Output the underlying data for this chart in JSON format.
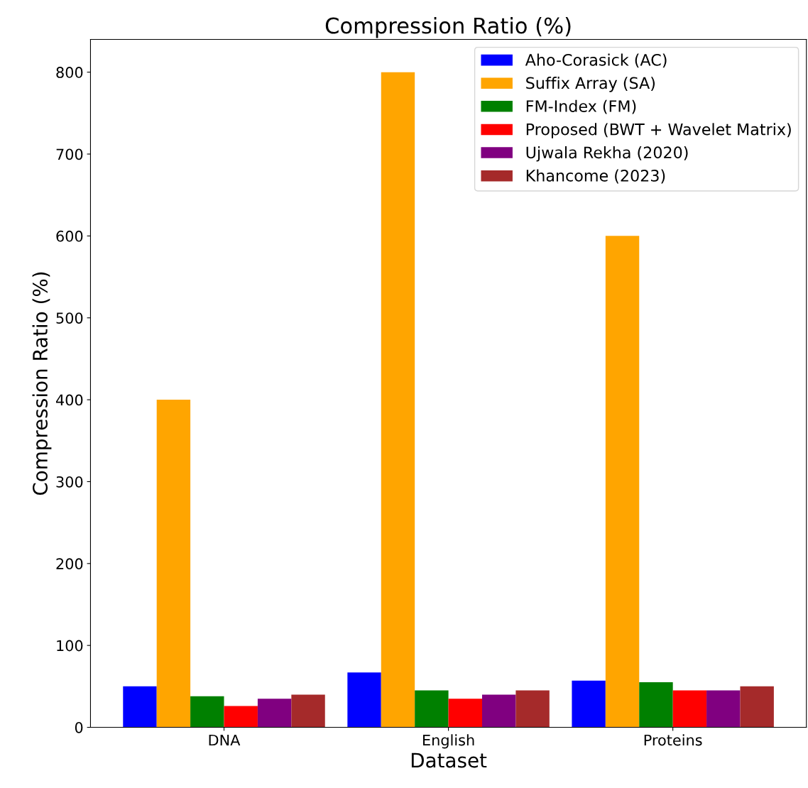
{
  "chart_data": {
    "type": "bar",
    "title": "Compression Ratio (%)",
    "xlabel": "Dataset",
    "ylabel": "Compression Ratio (%)",
    "categories": [
      "DNA",
      "English",
      "Proteins"
    ],
    "series": [
      {
        "name": "Aho-Corasick (AC)",
        "color": "#0000ff",
        "values": [
          50,
          67,
          57
        ]
      },
      {
        "name": "Suffix Array (SA)",
        "color": "#ffa500",
        "values": [
          400,
          800,
          600
        ]
      },
      {
        "name": "FM-Index (FM)",
        "color": "#008000",
        "values": [
          38,
          45,
          55
        ]
      },
      {
        "name": "Proposed (BWT + Wavelet Matrix)",
        "color": "#ff0000",
        "values": [
          26,
          35,
          45
        ]
      },
      {
        "name": "Ujwala Rekha (2020)",
        "color": "#800080",
        "values": [
          35,
          40,
          45
        ]
      },
      {
        "name": "Khancome (2023)",
        "color": "#a52a2a",
        "values": [
          40,
          45,
          50
        ]
      }
    ],
    "ylim": [
      0,
      840
    ],
    "yticks": [
      0,
      100,
      200,
      300,
      400,
      500,
      600,
      700,
      800
    ],
    "legend": "top right",
    "grid": false
  }
}
